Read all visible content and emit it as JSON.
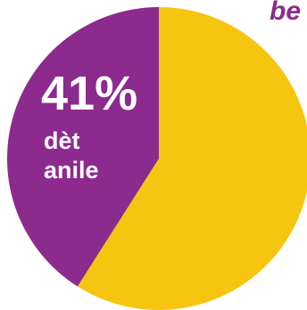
{
  "chart_data": {
    "type": "pie",
    "title_fragment": "be",
    "slices": [
      {
        "label": "dèt anile",
        "value": 41,
        "percent_label": "41%",
        "label_lines": [
          "dèt",
          "anile"
        ],
        "color": "#8c2a8e"
      },
      {
        "label": "",
        "value": 59,
        "color": "#f6c50f"
      }
    ],
    "start_angle_deg": 0,
    "direction": "clockwise"
  },
  "colors": {
    "title": "#8c2a8e",
    "label_text": "#ffffff"
  }
}
